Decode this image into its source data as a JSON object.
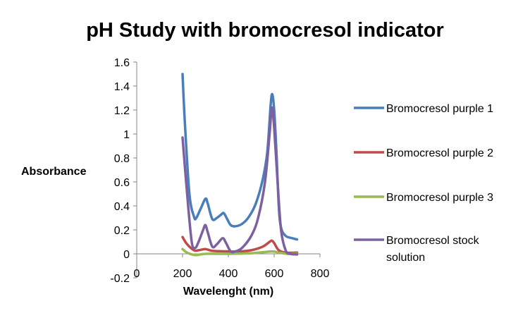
{
  "chart_data": {
    "type": "line",
    "title": "pH Study with bromocresol indicator",
    "xlabel": "Wavelenght (nm)",
    "ylabel": "Absorbance",
    "xlim": [
      0,
      800
    ],
    "ylim": [
      -0.2,
      1.6
    ],
    "xticks": [
      "0",
      "200",
      "400",
      "600",
      "800"
    ],
    "xtick_values": [
      0,
      200,
      400,
      600,
      800
    ],
    "yticks": [
      "-0.2",
      "0",
      "0.2",
      "0.4",
      "0.6",
      "0.8",
      "1",
      "1.2",
      "1.4",
      "1.6"
    ],
    "ytick_values": [
      -0.2,
      0,
      0.2,
      0.4,
      0.6,
      0.8,
      1,
      1.2,
      1.4,
      1.6
    ],
    "grid": false,
    "legend_position": "right",
    "series": [
      {
        "name": "Bromocresol purple 1",
        "color": "#4a7ebb",
        "x": [
          200,
          210,
          230,
          250,
          260,
          280,
          300,
          310,
          330,
          350,
          370,
          380,
          395,
          410,
          430,
          460,
          490,
          520,
          550,
          570,
          585,
          592,
          600,
          610,
          620,
          630,
          650,
          680,
          700
        ],
        "y": [
          1.5,
          1.1,
          0.5,
          0.31,
          0.3,
          0.38,
          0.46,
          0.42,
          0.29,
          0.3,
          0.33,
          0.34,
          0.29,
          0.24,
          0.23,
          0.25,
          0.31,
          0.42,
          0.62,
          0.85,
          1.25,
          1.33,
          1.2,
          0.85,
          0.4,
          0.22,
          0.15,
          0.13,
          0.12
        ]
      },
      {
        "name": "Bromocresol purple 2",
        "color": "#be4b48",
        "x": [
          200,
          220,
          250,
          270,
          300,
          330,
          400,
          450,
          500,
          550,
          580,
          590,
          600,
          620,
          650,
          700
        ],
        "y": [
          0.14,
          0.08,
          0.03,
          0.03,
          0.04,
          0.025,
          0.02,
          0.02,
          0.03,
          0.06,
          0.1,
          0.11,
          0.09,
          0.03,
          0.01,
          0.01
        ]
      },
      {
        "name": "Bromocresol purple 3",
        "color": "#98b954",
        "x": [
          200,
          220,
          255,
          300,
          400,
          500,
          590,
          620,
          660,
          700
        ],
        "y": [
          0.04,
          0.01,
          -0.01,
          0,
          0,
          0.005,
          0.02,
          0.01,
          0,
          0
        ]
      },
      {
        "name": "Bromocresol stock solution",
        "name_lines": [
          "Bromocresol stock",
          "solution"
        ],
        "color": "#7d60a0",
        "x": [
          200,
          220,
          240,
          255,
          270,
          290,
          300,
          310,
          330,
          350,
          375,
          390,
          410,
          430,
          460,
          500,
          530,
          560,
          580,
          590,
          600,
          615,
          630,
          650,
          670,
          700
        ],
        "y": [
          0.97,
          0.5,
          0.1,
          0.05,
          0.1,
          0.2,
          0.24,
          0.18,
          0.06,
          0.08,
          0.13,
          0.09,
          0.02,
          0.02,
          0.05,
          0.15,
          0.3,
          0.6,
          1.0,
          1.22,
          1.05,
          0.6,
          0.2,
          0.03,
          0,
          -0.005
        ]
      }
    ]
  }
}
